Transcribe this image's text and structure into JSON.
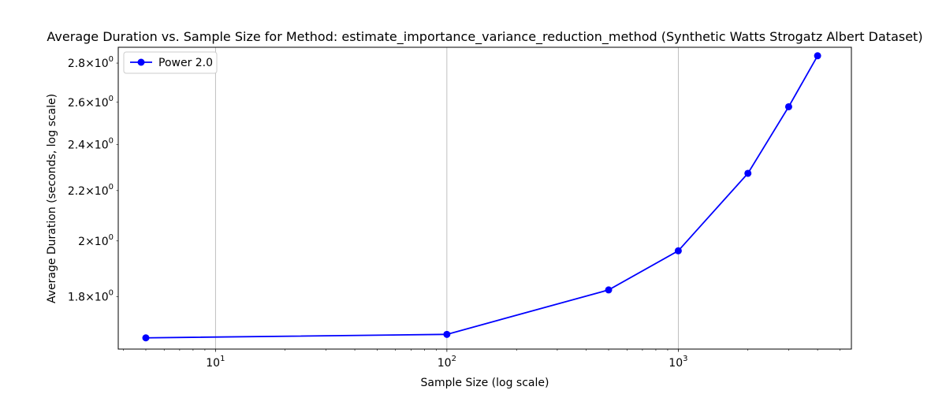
{
  "chart_data": {
    "type": "line",
    "title": "Average Duration vs. Sample Size for Method: estimate_importance_variance_reduction_method (Synthetic Watts Strogatz Albert Dataset)",
    "xlabel": "Sample Size (log scale)",
    "ylabel": "Average Duration (seconds, log scale)",
    "xscale": "log",
    "yscale": "log",
    "xlim": [
      3.8,
      5600
    ],
    "ylim": [
      1.63,
      2.885
    ],
    "grid": "x-major",
    "legend_position": "top-left",
    "x_major_ticks": [
      {
        "value": 10,
        "base": "10",
        "exp": "1"
      },
      {
        "value": 100,
        "base": "10",
        "exp": "2"
      },
      {
        "value": 1000,
        "base": "10",
        "exp": "3"
      }
    ],
    "y_ticks": [
      {
        "value": 1.8,
        "mant": "1.8",
        "base": "10",
        "exp": "0"
      },
      {
        "value": 2.0,
        "mant": "2",
        "base": "10",
        "exp": "0"
      },
      {
        "value": 2.2,
        "mant": "2.2",
        "base": "10",
        "exp": "0"
      },
      {
        "value": 2.4,
        "mant": "2.4",
        "base": "10",
        "exp": "0"
      },
      {
        "value": 2.6,
        "mant": "2.6",
        "base": "10",
        "exp": "0"
      },
      {
        "value": 2.8,
        "mant": "2.8",
        "base": "10",
        "exp": "0"
      }
    ],
    "series": [
      {
        "name": "Power 2.0",
        "color": "#0000ff",
        "marker": "circle",
        "x": [
          5,
          100,
          500,
          1000,
          2000,
          3000,
          4000
        ],
        "y": [
          1.665,
          1.676,
          1.823,
          1.963,
          2.273,
          2.578,
          2.839
        ]
      }
    ]
  }
}
